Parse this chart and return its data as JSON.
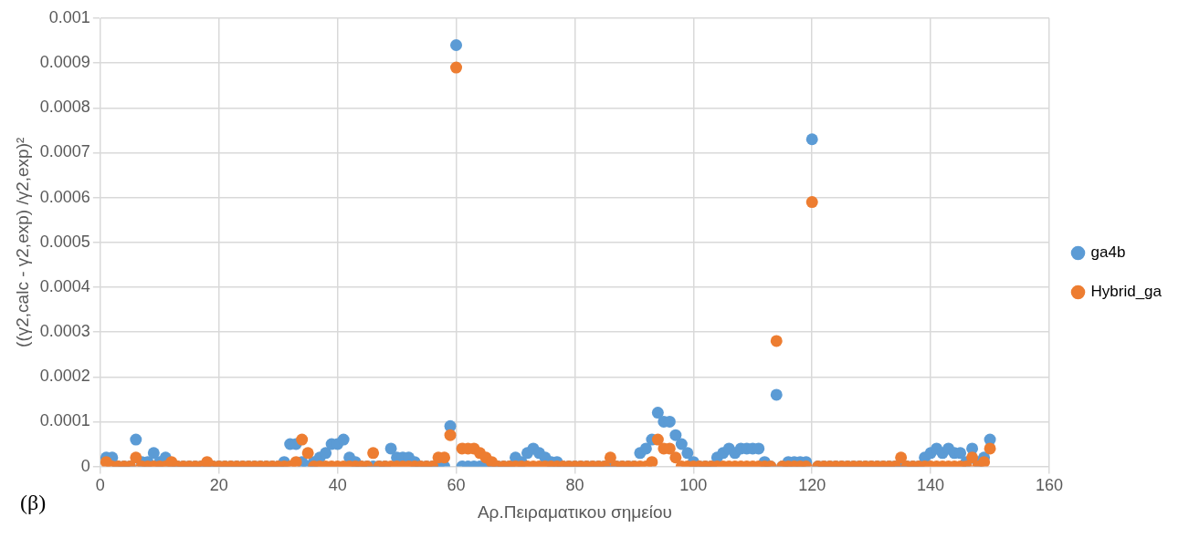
{
  "chart_data": {
    "type": "scatter",
    "xlabel": "Αρ.Πειραματικου σημείου",
    "ylabel": "((γ2,calc - γ2,exp) /γ2,exp)²",
    "annotations": [
      "(β)"
    ],
    "x": [
      1,
      2,
      3,
      4,
      5,
      6,
      7,
      8,
      9,
      10,
      11,
      12,
      13,
      14,
      15,
      16,
      17,
      18,
      19,
      20,
      21,
      22,
      23,
      24,
      25,
      26,
      27,
      28,
      29,
      30,
      31,
      32,
      33,
      34,
      35,
      36,
      37,
      38,
      39,
      40,
      41,
      42,
      43,
      44,
      45,
      46,
      47,
      48,
      49,
      50,
      51,
      52,
      53,
      54,
      55,
      56,
      57,
      58,
      59,
      60,
      61,
      62,
      63,
      64,
      65,
      66,
      67,
      68,
      69,
      70,
      71,
      72,
      73,
      74,
      75,
      76,
      77,
      78,
      79,
      80,
      81,
      82,
      83,
      84,
      85,
      86,
      87,
      88,
      89,
      90,
      91,
      92,
      93,
      94,
      95,
      96,
      97,
      98,
      99,
      100,
      101,
      102,
      103,
      104,
      105,
      106,
      107,
      108,
      109,
      110,
      111,
      112,
      113,
      114,
      115,
      116,
      117,
      118,
      119,
      120,
      121,
      122,
      123,
      124,
      125,
      126,
      127,
      128,
      129,
      130,
      131,
      132,
      133,
      134,
      135,
      136,
      137,
      138,
      139,
      140,
      141,
      142,
      143,
      144,
      145,
      146,
      147,
      148,
      149,
      150
    ],
    "series": [
      {
        "name": "ga4b",
        "color": "#5b9bd5",
        "values": [
          2e-05,
          2e-05,
          0,
          0,
          0,
          6e-05,
          1e-05,
          1e-05,
          3e-05,
          1e-05,
          2e-05,
          0,
          0,
          0,
          0,
          0,
          0,
          0,
          0,
          0,
          0,
          0,
          0,
          0,
          0,
          0,
          0,
          0,
          0,
          0,
          1e-05,
          5e-05,
          5e-05,
          1e-05,
          0,
          1e-05,
          2e-05,
          3e-05,
          5e-05,
          5e-05,
          6e-05,
          2e-05,
          1e-05,
          0,
          0,
          0,
          0,
          0,
          4e-05,
          2e-05,
          2e-05,
          2e-05,
          1e-05,
          0,
          0,
          0,
          0,
          0,
          9e-05,
          0.00094,
          0,
          0,
          0,
          0,
          0,
          0,
          0,
          0,
          0,
          2e-05,
          1e-05,
          3e-05,
          4e-05,
          3e-05,
          2e-05,
          1e-05,
          1e-05,
          0,
          0,
          0,
          0,
          0,
          0,
          0,
          0,
          0,
          0,
          0,
          0,
          0,
          3e-05,
          4e-05,
          6e-05,
          0.00012,
          0.0001,
          0.0001,
          7e-05,
          5e-05,
          3e-05,
          1e-05,
          0,
          0,
          0,
          2e-05,
          3e-05,
          4e-05,
          3e-05,
          4e-05,
          4e-05,
          4e-05,
          4e-05,
          1e-05,
          0,
          0.00016,
          0,
          1e-05,
          1e-05,
          1e-05,
          1e-05,
          0.00073,
          0,
          0,
          0,
          0,
          0,
          0,
          0,
          0,
          0,
          0,
          0,
          0,
          0,
          0,
          0,
          0,
          0,
          0,
          2e-05,
          3e-05,
          4e-05,
          3e-05,
          4e-05,
          3e-05,
          3e-05,
          1e-05,
          4e-05,
          1e-05,
          2e-05,
          6e-05
        ]
      },
      {
        "name": "Hybrid_ga",
        "color": "#ed7d31",
        "values": [
          1e-05,
          0,
          0,
          0,
          0,
          2e-05,
          0,
          0,
          0,
          0,
          0,
          1e-05,
          0,
          0,
          0,
          0,
          0,
          1e-05,
          0,
          0,
          0,
          0,
          0,
          0,
          0,
          0,
          0,
          0,
          0,
          0,
          0,
          0,
          1e-05,
          6e-05,
          3e-05,
          0,
          0,
          0,
          0,
          0,
          0,
          0,
          0,
          0,
          0,
          3e-05,
          0,
          0,
          0,
          0,
          0,
          0,
          0,
          0,
          0,
          0,
          2e-05,
          2e-05,
          7e-05,
          0.00089,
          4e-05,
          4e-05,
          4e-05,
          3e-05,
          2e-05,
          1e-05,
          0,
          0,
          0,
          0,
          0,
          0,
          0,
          0,
          0,
          0,
          0,
          0,
          0,
          0,
          0,
          0,
          0,
          0,
          0,
          2e-05,
          0,
          0,
          0,
          0,
          0,
          0,
          1e-05,
          6e-05,
          4e-05,
          4e-05,
          2e-05,
          0,
          0,
          0,
          0,
          0,
          0,
          0,
          0,
          0,
          0,
          0,
          0,
          0,
          0,
          0,
          0,
          0.00028,
          0,
          0,
          0,
          0,
          0,
          0.00059,
          0,
          0,
          0,
          0,
          0,
          0,
          0,
          0,
          0,
          0,
          0,
          0,
          0,
          0,
          2e-05,
          0,
          0,
          0,
          0,
          0,
          0,
          0,
          0,
          0,
          0,
          0,
          2e-05,
          0,
          1e-05,
          4e-05
        ]
      }
    ],
    "xlim": [
      0,
      160
    ],
    "xticks": [
      0,
      20,
      40,
      60,
      80,
      100,
      120,
      140,
      160
    ],
    "ylim": [
      0,
      0.001
    ],
    "yticks": [
      0,
      0.0001,
      0.0002,
      0.0003,
      0.0004,
      0.0005,
      0.0006,
      0.0007,
      0.0008,
      0.0009,
      0.001
    ],
    "grid": true,
    "legend": "right",
    "marker": "circle"
  }
}
